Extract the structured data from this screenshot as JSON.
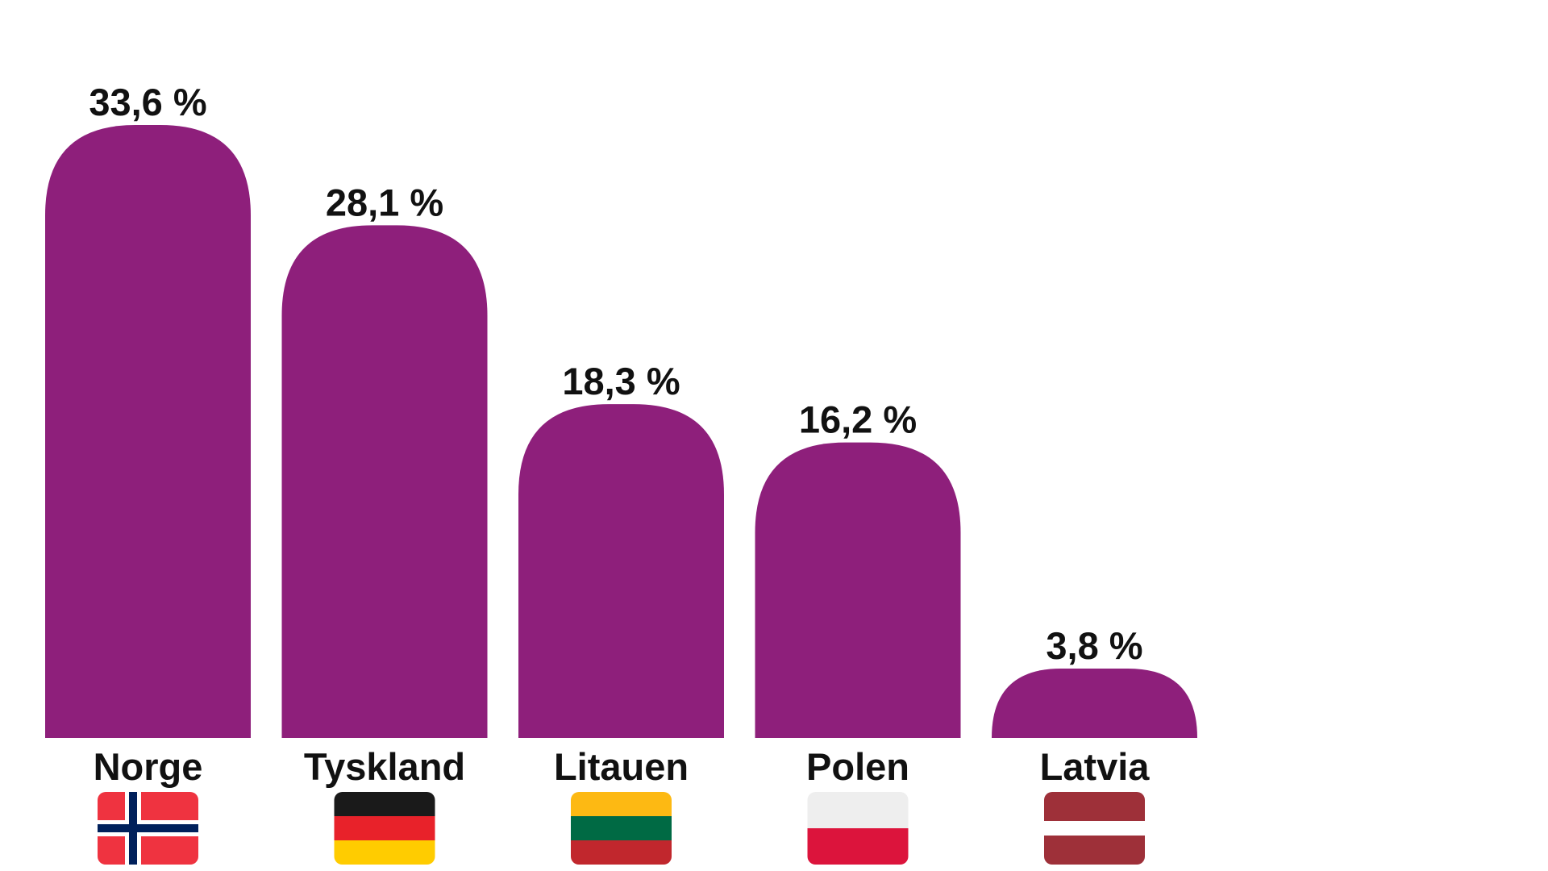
{
  "chart_data": {
    "type": "bar",
    "categories": [
      "Norge",
      "Tyskland",
      "Litauen",
      "Polen",
      "Latvia"
    ],
    "values": [
      33.6,
      28.1,
      18.3,
      16.2,
      3.8
    ],
    "value_labels": [
      "33,6 %",
      "28,1 %",
      "18,3 %",
      "16,2  %",
      "3,8 %"
    ],
    "bar_color": "#8e1f7b",
    "flags": [
      {
        "country": "Norge",
        "icon": "norway-flag-icon"
      },
      {
        "country": "Tyskland",
        "icon": "germany-flag-icon"
      },
      {
        "country": "Litauen",
        "icon": "lithuania-flag-icon"
      },
      {
        "country": "Polen",
        "icon": "poland-flag-icon"
      },
      {
        "country": "Latvia",
        "icon": "latvia-flag-icon"
      }
    ],
    "title": "",
    "xlabel": "",
    "ylabel": "",
    "ylim": [
      0,
      33.6
    ],
    "grid": false,
    "legend": "none"
  },
  "colors": {
    "norway_red": "#ef3340",
    "norway_blue": "#00205b",
    "germany_black": "#1a1a1a",
    "germany_red": "#e8222a",
    "germany_gold": "#ffcc00",
    "lithuania_yellow": "#fdb913",
    "lithuania_green": "#006a44",
    "lithuania_red": "#c1272d",
    "poland_white": "#eeeeee",
    "poland_red": "#dc143c",
    "latvia_red": "#9e3039",
    "latvia_white": "#ffffff"
  }
}
